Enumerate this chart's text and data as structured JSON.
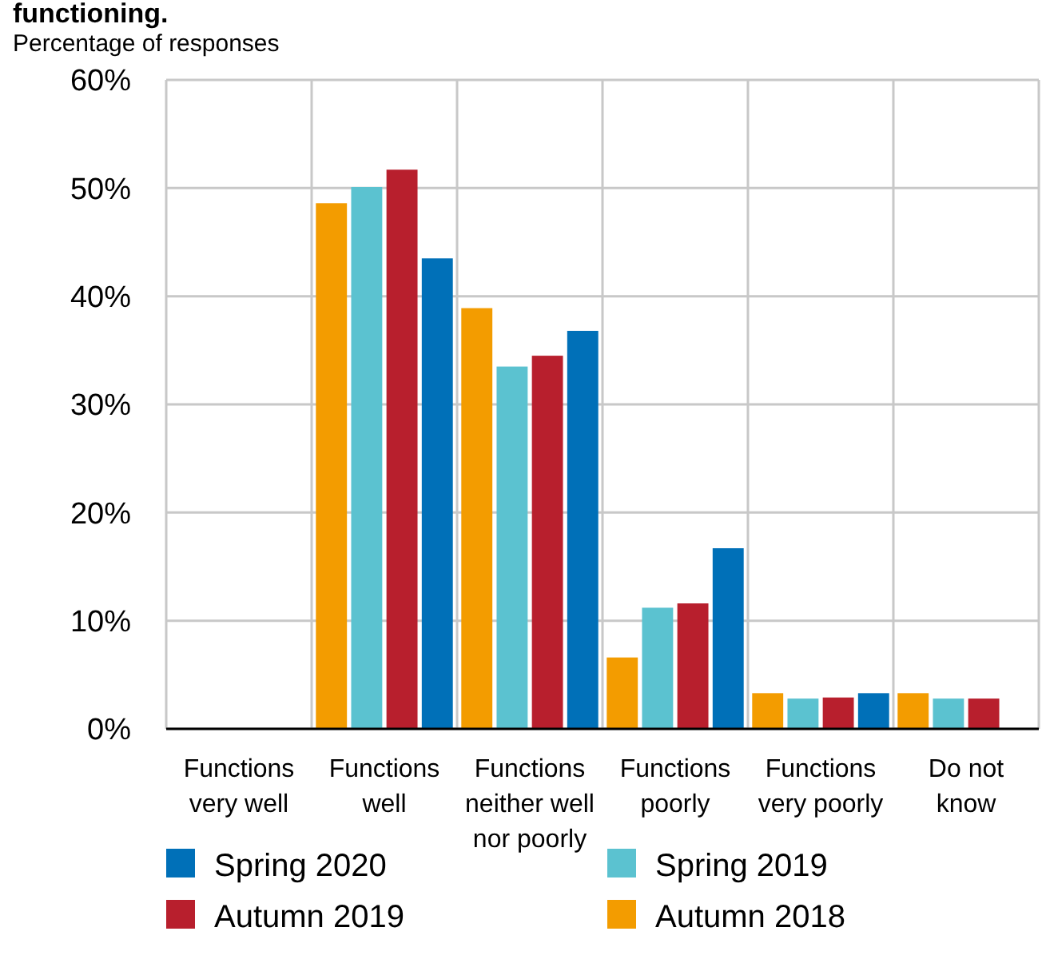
{
  "chart_data": {
    "type": "bar",
    "title": "functioning.",
    "ylabel": "Percentage of responses",
    "categories": [
      "Functions very well",
      "Functions well",
      "Functions neither well nor poorly",
      "Functions poorly",
      "Functions very poorly",
      "Do not know"
    ],
    "series": [
      {
        "name": "Autumn 2018",
        "color": "#f39c00",
        "values": [
          null,
          48.6,
          38.9,
          6.6,
          3.3,
          3.3
        ]
      },
      {
        "name": "Spring 2019",
        "color": "#5bc2d0",
        "values": [
          null,
          50.1,
          33.5,
          11.2,
          2.8,
          2.8
        ]
      },
      {
        "name": "Autumn 2019",
        "color": "#b81f2d",
        "values": [
          null,
          51.7,
          34.5,
          11.6,
          2.9,
          2.8
        ]
      },
      {
        "name": "Spring 2020",
        "color": "#0070b8",
        "values": [
          null,
          43.5,
          36.8,
          16.7,
          3.3,
          null
        ]
      }
    ],
    "ylim": [
      0,
      60
    ],
    "yticks": [
      {
        "value": 0,
        "label": "0%"
      },
      {
        "value": 10,
        "label": "10%"
      },
      {
        "value": 20,
        "label": "20%"
      },
      {
        "value": 30,
        "label": "30%"
      },
      {
        "value": 40,
        "label": "40%"
      },
      {
        "value": 50,
        "label": "50%"
      },
      {
        "value": 60,
        "label": "60%"
      }
    ],
    "grid": true,
    "legend": "bottom"
  }
}
